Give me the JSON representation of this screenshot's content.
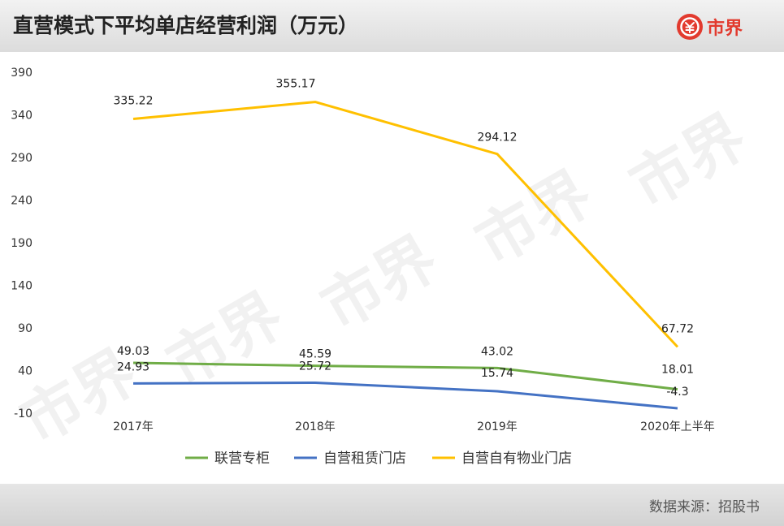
{
  "header": {
    "title": "直营模式下平均单店经营利润（万元）"
  },
  "logo": {
    "text": "市界",
    "icon": "yuan-circle-icon",
    "color": "#e23a2e"
  },
  "watermark": {
    "text": "市界"
  },
  "footer": {
    "source": "数据来源：招股书"
  },
  "colors": {
    "green": "#70ad47",
    "blue": "#4472c4",
    "yellow": "#ffc000"
  },
  "chart_data": {
    "type": "line",
    "title": "直营模式下平均单店经营利润（万元）",
    "categories": [
      "2017年",
      "2018年",
      "2019年",
      "2020年上半年"
    ],
    "y_ticks": [
      "390",
      "340",
      "290",
      "240",
      "190",
      "140",
      "90",
      "40",
      "-10"
    ],
    "ylim": [
      -10,
      390
    ],
    "grid": false,
    "legend_position": "bottom",
    "series": [
      {
        "name": "联营专柜",
        "color": "#70ad47",
        "values": [
          49.03,
          45.59,
          43.02,
          18.01
        ],
        "labels": [
          "49.03",
          "45.59",
          "43.02",
          "18.01"
        ]
      },
      {
        "name": "自营租赁门店",
        "color": "#4472c4",
        "values": [
          24.93,
          25.72,
          15.74,
          -4.3
        ],
        "labels": [
          "24.93",
          "25.72",
          "15.74",
          "-4.3"
        ]
      },
      {
        "name": "自营自有物业门店",
        "color": "#ffc000",
        "values": [
          335.22,
          355.17,
          294.12,
          67.72
        ],
        "labels": [
          "335.22",
          "355.17",
          "294.12",
          "67.72"
        ]
      }
    ]
  }
}
